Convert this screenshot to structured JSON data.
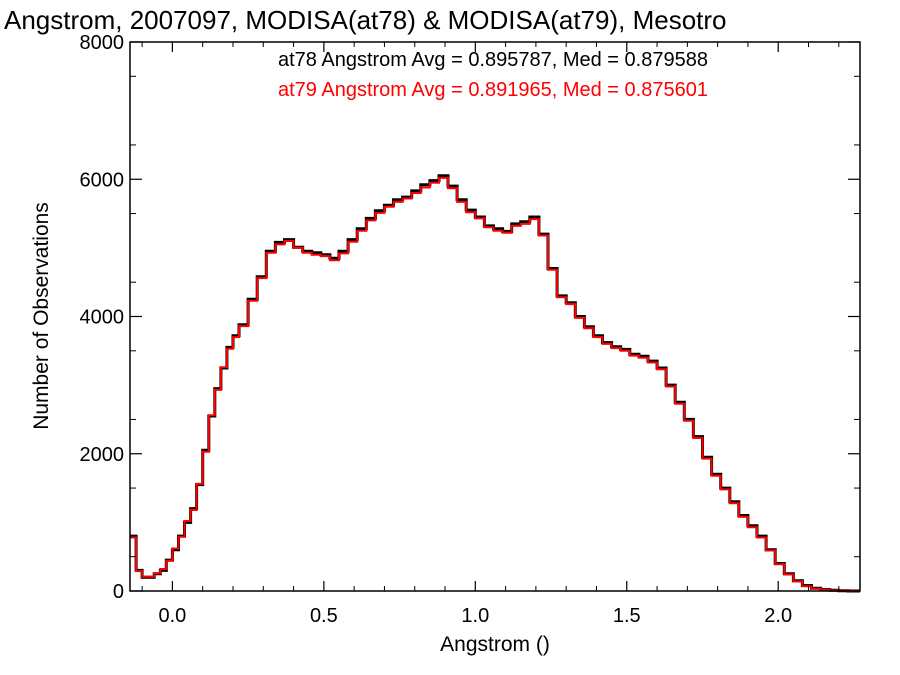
{
  "chart_data": {
    "type": "line",
    "step": true,
    "title": "Angstrom, 2007097, MODISA(at78) & MODISA(at79), Mesotro",
    "xlabel": "Angstrom ()",
    "ylabel": "Number of Observations",
    "xlim": [
      -0.14,
      2.27
    ],
    "ylim": [
      0,
      8000
    ],
    "xticks": [
      0.0,
      0.5,
      1.0,
      1.5,
      2.0
    ],
    "xtick_labels": [
      "0.0",
      "0.5",
      "1.0",
      "1.5",
      "2.0"
    ],
    "yticks": [
      0,
      2000,
      4000,
      6000,
      8000
    ],
    "ytick_labels": [
      "0",
      "2000",
      "4000",
      "6000",
      "8000"
    ],
    "grid": false,
    "annotations": [
      {
        "text": "at78 Angstrom Avg = 0.895787, Med = 0.879588",
        "color": "#000000"
      },
      {
        "text": "at79 Angstrom Avg = 0.891965, Med = 0.875601",
        "color": "#ff0000"
      }
    ],
    "series": [
      {
        "color": "#000000",
        "x": [
          -0.14,
          -0.12,
          -0.1,
          -0.08,
          -0.06,
          -0.04,
          -0.02,
          0.0,
          0.02,
          0.04,
          0.06,
          0.08,
          0.1,
          0.12,
          0.14,
          0.16,
          0.18,
          0.2,
          0.22,
          0.25,
          0.28,
          0.31,
          0.34,
          0.37,
          0.4,
          0.43,
          0.46,
          0.49,
          0.52,
          0.55,
          0.58,
          0.61,
          0.64,
          0.67,
          0.7,
          0.73,
          0.76,
          0.79,
          0.82,
          0.85,
          0.88,
          0.91,
          0.94,
          0.97,
          1.0,
          1.03,
          1.06,
          1.09,
          1.12,
          1.15,
          1.18,
          1.21,
          1.24,
          1.27,
          1.3,
          1.33,
          1.36,
          1.39,
          1.42,
          1.45,
          1.48,
          1.51,
          1.54,
          1.57,
          1.6,
          1.63,
          1.66,
          1.69,
          1.72,
          1.75,
          1.78,
          1.81,
          1.84,
          1.87,
          1.9,
          1.93,
          1.96,
          1.99,
          2.02,
          2.05,
          2.08,
          2.11,
          2.14,
          2.17,
          2.2,
          2.23,
          2.27
        ],
        "y": [
          800,
          300,
          200,
          200,
          250,
          300,
          450,
          600,
          800,
          1000,
          1200,
          1550,
          2050,
          2550,
          2950,
          3250,
          3550,
          3720,
          3880,
          4250,
          4580,
          4950,
          5080,
          5120,
          5010,
          4950,
          4930,
          4900,
          4850,
          4950,
          5120,
          5280,
          5430,
          5540,
          5620,
          5700,
          5740,
          5830,
          5920,
          5980,
          6050,
          5900,
          5700,
          5550,
          5450,
          5320,
          5280,
          5240,
          5350,
          5380,
          5450,
          5200,
          4700,
          4300,
          4200,
          4000,
          3850,
          3720,
          3620,
          3560,
          3520,
          3450,
          3420,
          3350,
          3250,
          3000,
          2750,
          2500,
          2250,
          1950,
          1700,
          1500,
          1300,
          1100,
          950,
          800,
          600,
          400,
          250,
          150,
          80,
          40,
          20,
          10,
          5,
          0,
          0
        ]
      },
      {
        "color": "#ff0000",
        "x": [
          -0.14,
          -0.12,
          -0.1,
          -0.08,
          -0.06,
          -0.04,
          -0.02,
          0.0,
          0.02,
          0.04,
          0.06,
          0.08,
          0.1,
          0.12,
          0.14,
          0.16,
          0.18,
          0.2,
          0.22,
          0.25,
          0.28,
          0.31,
          0.34,
          0.37,
          0.4,
          0.43,
          0.46,
          0.49,
          0.52,
          0.55,
          0.58,
          0.61,
          0.64,
          0.67,
          0.7,
          0.73,
          0.76,
          0.79,
          0.82,
          0.85,
          0.88,
          0.91,
          0.94,
          0.97,
          1.0,
          1.03,
          1.06,
          1.09,
          1.12,
          1.15,
          1.18,
          1.21,
          1.24,
          1.27,
          1.3,
          1.33,
          1.36,
          1.39,
          1.42,
          1.45,
          1.48,
          1.51,
          1.54,
          1.57,
          1.6,
          1.63,
          1.66,
          1.69,
          1.72,
          1.75,
          1.78,
          1.81,
          1.84,
          1.87,
          1.9,
          1.93,
          1.96,
          1.99,
          2.02,
          2.05,
          2.08,
          2.11,
          2.14,
          2.17,
          2.2,
          2.23,
          2.27
        ],
        "y": [
          780,
          290,
          210,
          210,
          260,
          320,
          440,
          620,
          790,
          1020,
          1180,
          1560,
          2030,
          2560,
          2930,
          3260,
          3530,
          3700,
          3860,
          4230,
          4560,
          4930,
          5050,
          5100,
          5000,
          4930,
          4900,
          4880,
          4820,
          4920,
          5090,
          5250,
          5400,
          5510,
          5600,
          5670,
          5720,
          5800,
          5880,
          5950,
          6020,
          5870,
          5670,
          5520,
          5430,
          5300,
          5250,
          5220,
          5320,
          5350,
          5420,
          5180,
          4680,
          4280,
          4180,
          3980,
          3830,
          3700,
          3600,
          3540,
          3500,
          3430,
          3400,
          3330,
          3230,
          2980,
          2730,
          2480,
          2230,
          1930,
          1680,
          1480,
          1280,
          1080,
          930,
          780,
          590,
          390,
          240,
          140,
          70,
          35,
          15,
          8,
          3,
          0,
          0
        ]
      }
    ]
  }
}
